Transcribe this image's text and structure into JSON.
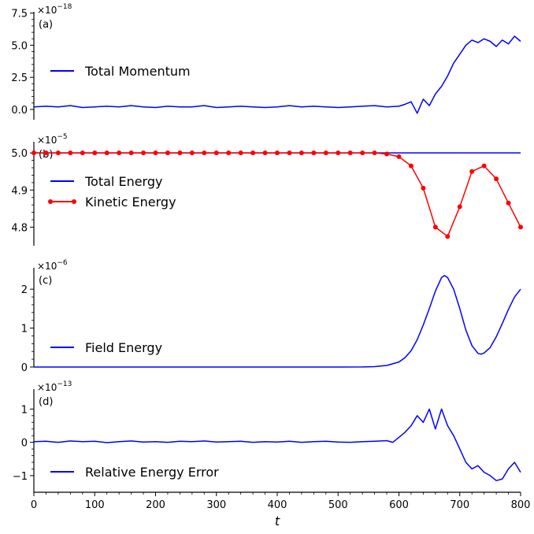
{
  "chart_data": [
    {
      "type": "line",
      "panel_label": "(a)",
      "scale_factor": "×10",
      "scale_exponent": "−18",
      "ylim": [
        -0.8,
        7.6
      ],
      "yticks": [
        0.0,
        2.5,
        5.0,
        7.5
      ],
      "ytick_labels": [
        "0.0",
        "2.5",
        "5.0",
        "7.5"
      ],
      "series": [
        {
          "name": "Total Momentum",
          "color": "#0000ff",
          "markers": false,
          "x": [
            0,
            20,
            40,
            60,
            80,
            100,
            120,
            140,
            160,
            180,
            200,
            220,
            240,
            260,
            280,
            300,
            320,
            340,
            360,
            380,
            400,
            420,
            440,
            460,
            480,
            500,
            520,
            540,
            560,
            580,
            600,
            610,
            620,
            630,
            640,
            650,
            660,
            670,
            680,
            690,
            700,
            710,
            720,
            730,
            740,
            750,
            760,
            770,
            780,
            790,
            800
          ],
          "y": [
            0.2,
            0.25,
            0.2,
            0.3,
            0.15,
            0.2,
            0.25,
            0.2,
            0.3,
            0.2,
            0.15,
            0.25,
            0.2,
            0.2,
            0.3,
            0.15,
            0.2,
            0.25,
            0.2,
            0.15,
            0.2,
            0.3,
            0.2,
            0.25,
            0.2,
            0.15,
            0.2,
            0.25,
            0.3,
            0.2,
            0.25,
            0.4,
            0.6,
            -0.3,
            0.8,
            0.3,
            1.2,
            1.8,
            2.6,
            3.6,
            4.3,
            5.0,
            5.4,
            5.2,
            5.5,
            5.3,
            4.9,
            5.4,
            5.1,
            5.7,
            5.3
          ]
        }
      ]
    },
    {
      "type": "line",
      "panel_label": "(b)",
      "scale_factor": "×10",
      "scale_exponent": "−5",
      "ylim": [
        4.75,
        5.03
      ],
      "yticks": [
        4.8,
        4.9,
        5.0
      ],
      "ytick_labels": [
        "4.8",
        "4.9",
        "5.0"
      ],
      "series": [
        {
          "name": "Total Energy",
          "color": "#0000ff",
          "markers": false,
          "x": [
            0,
            800
          ],
          "y": [
            5.0,
            5.0
          ]
        },
        {
          "name": "Kinetic Energy",
          "color": "#ff0000",
          "markers": true,
          "x": [
            0,
            20,
            40,
            60,
            80,
            100,
            120,
            140,
            160,
            180,
            200,
            220,
            240,
            260,
            280,
            300,
            320,
            340,
            360,
            380,
            400,
            420,
            440,
            460,
            480,
            500,
            520,
            540,
            560,
            580,
            600,
            620,
            640,
            660,
            680,
            700,
            720,
            740,
            760,
            780,
            800
          ],
          "y": [
            5.0,
            5.0,
            5.0,
            5.0,
            5.0,
            5.0,
            5.0,
            5.0,
            5.0,
            5.0,
            5.0,
            5.0,
            5.0,
            5.0,
            5.0,
            5.0,
            5.0,
            5.0,
            5.0,
            5.0,
            5.0,
            5.0,
            5.0,
            5.0,
            5.0,
            5.0,
            5.0,
            5.0,
            5.0,
            4.997,
            4.99,
            4.965,
            4.905,
            4.8,
            4.775,
            4.855,
            4.95,
            4.965,
            4.93,
            4.865,
            4.8
          ]
        }
      ]
    },
    {
      "type": "line",
      "panel_label": "(c)",
      "scale_factor": "×10",
      "scale_exponent": "−6",
      "ylim": [
        0,
        2.55
      ],
      "yticks": [
        0,
        1,
        2
      ],
      "ytick_labels": [
        "0",
        "1",
        "2"
      ],
      "series": [
        {
          "name": "Field Energy",
          "color": "#0000ff",
          "markers": false,
          "x": [
            0,
            500,
            540,
            560,
            580,
            600,
            610,
            620,
            630,
            640,
            650,
            660,
            670,
            675,
            680,
            690,
            700,
            710,
            720,
            730,
            735,
            740,
            750,
            760,
            770,
            780,
            790,
            800
          ],
          "y": [
            0,
            0,
            0.003,
            0.01,
            0.04,
            0.13,
            0.24,
            0.42,
            0.7,
            1.08,
            1.5,
            1.95,
            2.3,
            2.35,
            2.3,
            2.0,
            1.5,
            0.95,
            0.55,
            0.35,
            0.33,
            0.36,
            0.5,
            0.78,
            1.12,
            1.48,
            1.8,
            2.0
          ]
        }
      ]
    },
    {
      "type": "line",
      "panel_label": "(d)",
      "scale_factor": "×10",
      "scale_exponent": "−13",
      "ylim": [
        -1.5,
        1.6
      ],
      "yticks": [
        -1,
        0,
        1
      ],
      "ytick_labels": [
        "−1",
        "0",
        "1"
      ],
      "xlim": [
        0,
        800
      ],
      "xticks": [
        0,
        100,
        200,
        300,
        400,
        500,
        600,
        700,
        800
      ],
      "xtick_labels": [
        "0",
        "100",
        "200",
        "300",
        "400",
        "500",
        "600",
        "700",
        "800"
      ],
      "xlabel": "t",
      "series": [
        {
          "name": "Relative Energy Error",
          "color": "#0000ff",
          "markers": false,
          "x": [
            0,
            20,
            40,
            60,
            80,
            100,
            120,
            140,
            160,
            180,
            200,
            220,
            240,
            260,
            280,
            300,
            320,
            340,
            360,
            380,
            400,
            420,
            440,
            460,
            480,
            500,
            520,
            540,
            560,
            580,
            590,
            600,
            610,
            620,
            630,
            640,
            650,
            660,
            670,
            680,
            690,
            700,
            710,
            720,
            730,
            740,
            750,
            760,
            770,
            780,
            790,
            800
          ],
          "y": [
            0.02,
            0.03,
            0.0,
            0.04,
            0.02,
            0.03,
            -0.01,
            0.02,
            0.04,
            0.01,
            0.02,
            0.0,
            0.03,
            0.02,
            0.04,
            0.01,
            0.02,
            0.03,
            0.0,
            0.02,
            0.01,
            0.03,
            0.0,
            0.02,
            0.03,
            0.01,
            0.0,
            0.02,
            0.03,
            0.05,
            0.0,
            0.15,
            0.3,
            0.5,
            0.8,
            0.6,
            1.0,
            0.4,
            1.0,
            0.5,
            0.2,
            -0.2,
            -0.6,
            -0.8,
            -0.7,
            -0.9,
            -1.0,
            -1.15,
            -1.1,
            -0.8,
            -0.6,
            -0.9
          ]
        }
      ]
    }
  ]
}
